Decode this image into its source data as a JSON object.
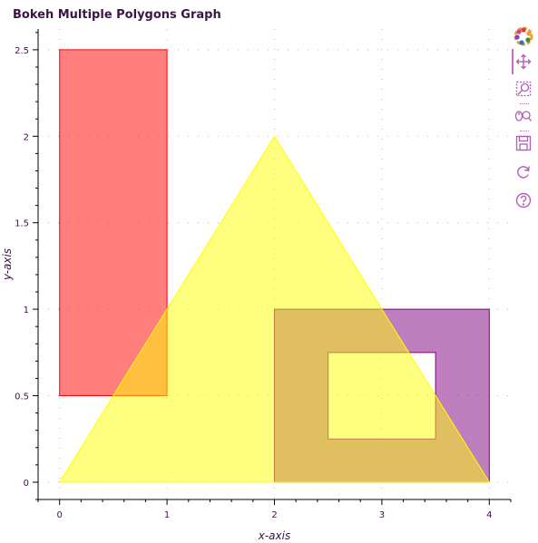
{
  "title": "Bokeh Multiple Polygons Graph",
  "colors": {
    "text": "#3b1544",
    "tool": "#b05fb0",
    "axis": "#000000",
    "grid": "#b8b8b8"
  },
  "chart_data": {
    "type": "polygon",
    "title": "Bokeh Multiple Polygons Graph",
    "xlabel": "x-axis",
    "ylabel": "y-axis",
    "xlim": [
      -0.2,
      4.2
    ],
    "ylim": [
      -0.1,
      2.62
    ],
    "x_ticks": [
      0,
      1,
      2,
      3,
      4
    ],
    "x_tick_labels": [
      "0",
      "1",
      "2",
      "3",
      "4"
    ],
    "y_ticks": [
      0,
      0.5,
      1,
      1.5,
      2,
      2.5
    ],
    "y_tick_labels": [
      "0",
      "0.5",
      "1",
      "1.5",
      "2",
      "2.5"
    ],
    "grid": "dotted",
    "legend": "none",
    "polygons": [
      {
        "fill": "#ff0000",
        "fill_alpha": 0.5,
        "stroke": "#ff0000",
        "x": [
          0,
          0,
          1,
          1
        ],
        "y": [
          0.5,
          2.5,
          2.5,
          0.5
        ],
        "holes": []
      },
      {
        "fill": "#800080",
        "fill_alpha": 0.5,
        "stroke": "#800080",
        "x": [
          2,
          2,
          4,
          4
        ],
        "y": [
          0,
          1,
          1,
          0
        ],
        "holes": [
          {
            "x": [
              2.5,
              2.5,
              3.5,
              3.5
            ],
            "y": [
              0.25,
              0.75,
              0.75,
              0.25
            ]
          }
        ]
      },
      {
        "fill": "#ffff00",
        "fill_alpha": 0.5,
        "stroke": "#ffff00",
        "x": [
          0,
          2,
          4
        ],
        "y": [
          0,
          2,
          0
        ],
        "holes": []
      }
    ]
  },
  "toolbar": {
    "tools": [
      {
        "name": "bokeh-logo-icon",
        "label": "Bokeh"
      },
      {
        "name": "pan-icon",
        "label": "Pan"
      },
      {
        "name": "box-zoom-icon",
        "label": "Box Zoom"
      },
      {
        "name": "wheel-zoom-icon",
        "label": "Wheel Zoom"
      },
      {
        "name": "save-icon",
        "label": "Save"
      },
      {
        "name": "reset-icon",
        "label": "Reset"
      },
      {
        "name": "help-icon",
        "label": "Help"
      }
    ]
  }
}
